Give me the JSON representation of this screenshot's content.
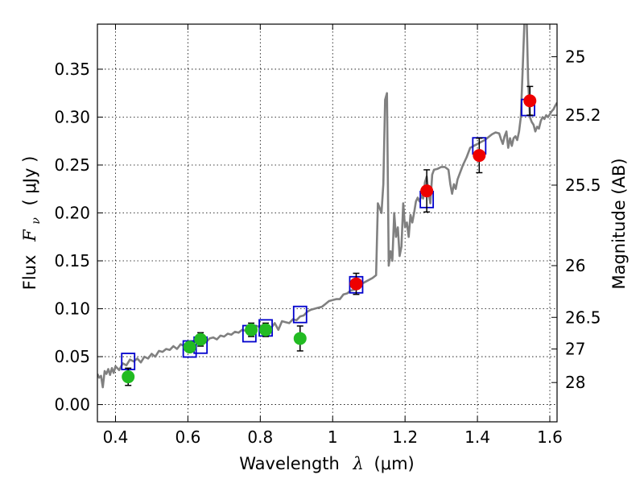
{
  "chart_data": {
    "type": "scatter",
    "xlabel_text": "Wavelength",
    "xlabel_symbol": "λ",
    "xlabel_unit": "(μm)",
    "ylabel_text": "Flux",
    "ylabel_symbol": "F",
    "ylabel_symbol_sub": "ν",
    "ylabel_unit": "( μJy )",
    "y2label": "Magnitude (AB)",
    "xlim": [
      0.35,
      1.62
    ],
    "ylim": [
      -0.018,
      0.397
    ],
    "grid": true,
    "x_ticks": [
      0.4,
      0.6,
      0.8,
      1.0,
      1.2,
      1.4,
      1.6
    ],
    "x_tick_labels": [
      "0.4",
      "0.6",
      "0.8",
      "1",
      "1.2",
      "1.4",
      "1.6"
    ],
    "y_ticks": [
      0.0,
      0.05,
      0.1,
      0.15,
      0.2,
      0.25,
      0.3,
      0.35
    ],
    "y_tick_labels": [
      "0.00",
      "0.05",
      "0.10",
      "0.15",
      "0.20",
      "0.25",
      "0.30",
      "0.35"
    ],
    "mag_ticks": [
      {
        "label": "25",
        "flux": 0.363
      },
      {
        "label": "25.2",
        "flux": 0.302
      },
      {
        "label": "25.5",
        "flux": 0.229
      },
      {
        "label": "26",
        "flux": 0.145
      },
      {
        "label": "26.5",
        "flux": 0.091
      },
      {
        "label": "27",
        "flux": 0.058
      },
      {
        "label": "28",
        "flux": 0.023
      }
    ],
    "colors": {
      "sed": "#808080",
      "model_box": "#0000cc",
      "ground": "#22bb22",
      "space": "#ee0000",
      "errorbar": "#000000"
    },
    "series": [
      {
        "type": "line",
        "points": [
          [
            0.35,
            0.032
          ],
          [
            0.355,
            0.028
          ],
          [
            0.36,
            0.03
          ],
          [
            0.365,
            0.018
          ],
          [
            0.37,
            0.035
          ],
          [
            0.375,
            0.032
          ],
          [
            0.38,
            0.037
          ],
          [
            0.385,
            0.031
          ],
          [
            0.39,
            0.038
          ],
          [
            0.395,
            0.033
          ],
          [
            0.4,
            0.04
          ],
          [
            0.41,
            0.036
          ],
          [
            0.42,
            0.043
          ],
          [
            0.43,
            0.041
          ],
          [
            0.44,
            0.047
          ],
          [
            0.45,
            0.045
          ],
          [
            0.46,
            0.048
          ],
          [
            0.47,
            0.044
          ],
          [
            0.48,
            0.05
          ],
          [
            0.49,
            0.048
          ],
          [
            0.5,
            0.053
          ],
          [
            0.51,
            0.05
          ],
          [
            0.52,
            0.056
          ],
          [
            0.53,
            0.055
          ],
          [
            0.54,
            0.058
          ],
          [
            0.55,
            0.057
          ],
          [
            0.56,
            0.061
          ],
          [
            0.57,
            0.058
          ],
          [
            0.58,
            0.063
          ],
          [
            0.59,
            0.061
          ],
          [
            0.6,
            0.064
          ],
          [
            0.61,
            0.062
          ],
          [
            0.62,
            0.066
          ],
          [
            0.63,
            0.064
          ],
          [
            0.64,
            0.067
          ],
          [
            0.65,
            0.065
          ],
          [
            0.66,
            0.069
          ],
          [
            0.67,
            0.07
          ],
          [
            0.68,
            0.068
          ],
          [
            0.69,
            0.072
          ],
          [
            0.7,
            0.071
          ],
          [
            0.71,
            0.074
          ],
          [
            0.72,
            0.073
          ],
          [
            0.73,
            0.076
          ],
          [
            0.74,
            0.075
          ],
          [
            0.75,
            0.078
          ],
          [
            0.76,
            0.077
          ],
          [
            0.77,
            0.08
          ],
          [
            0.78,
            0.079
          ],
          [
            0.79,
            0.082
          ],
          [
            0.8,
            0.081
          ],
          [
            0.81,
            0.084
          ],
          [
            0.82,
            0.083
          ],
          [
            0.83,
            0.08
          ],
          [
            0.84,
            0.085
          ],
          [
            0.85,
            0.078
          ],
          [
            0.86,
            0.087
          ],
          [
            0.87,
            0.086
          ],
          [
            0.88,
            0.085
          ],
          [
            0.89,
            0.089
          ],
          [
            0.9,
            0.088
          ],
          [
            0.91,
            0.092
          ],
          [
            0.92,
            0.093
          ],
          [
            0.93,
            0.097
          ],
          [
            0.94,
            0.099
          ],
          [
            0.95,
            0.1
          ],
          [
            0.96,
            0.101
          ],
          [
            0.97,
            0.102
          ],
          [
            0.98,
            0.105
          ],
          [
            0.99,
            0.108
          ],
          [
            1.0,
            0.109
          ],
          [
            1.01,
            0.11
          ],
          [
            1.02,
            0.11
          ],
          [
            1.03,
            0.115
          ],
          [
            1.04,
            0.116
          ],
          [
            1.05,
            0.119
          ],
          [
            1.06,
            0.12
          ],
          [
            1.07,
            0.124
          ],
          [
            1.08,
            0.126
          ],
          [
            1.09,
            0.128
          ],
          [
            1.1,
            0.13
          ],
          [
            1.11,
            0.132
          ],
          [
            1.12,
            0.135
          ],
          [
            1.125,
            0.21
          ],
          [
            1.13,
            0.205
          ],
          [
            1.135,
            0.2
          ],
          [
            1.14,
            0.23
          ],
          [
            1.145,
            0.318
          ],
          [
            1.15,
            0.325
          ],
          [
            1.155,
            0.145
          ],
          [
            1.16,
            0.16
          ],
          [
            1.165,
            0.15
          ],
          [
            1.17,
            0.2
          ],
          [
            1.175,
            0.175
          ],
          [
            1.18,
            0.185
          ],
          [
            1.185,
            0.155
          ],
          [
            1.19,
            0.165
          ],
          [
            1.195,
            0.21
          ],
          [
            1.2,
            0.185
          ],
          [
            1.205,
            0.19
          ],
          [
            1.21,
            0.175
          ],
          [
            1.215,
            0.198
          ],
          [
            1.22,
            0.19
          ],
          [
            1.225,
            0.2
          ],
          [
            1.23,
            0.212
          ],
          [
            1.235,
            0.216
          ],
          [
            1.24,
            0.212
          ],
          [
            1.245,
            0.218
          ],
          [
            1.25,
            0.215
          ],
          [
            1.255,
            0.232
          ],
          [
            1.26,
            0.238
          ],
          [
            1.265,
            0.22
          ],
          [
            1.27,
            0.21
          ],
          [
            1.275,
            0.24
          ],
          [
            1.28,
            0.245
          ],
          [
            1.29,
            0.246
          ],
          [
            1.3,
            0.248
          ],
          [
            1.31,
            0.248
          ],
          [
            1.32,
            0.245
          ],
          [
            1.325,
            0.23
          ],
          [
            1.33,
            0.22
          ],
          [
            1.335,
            0.23
          ],
          [
            1.34,
            0.225
          ],
          [
            1.345,
            0.235
          ],
          [
            1.35,
            0.24
          ],
          [
            1.36,
            0.25
          ],
          [
            1.37,
            0.258
          ],
          [
            1.38,
            0.268
          ],
          [
            1.39,
            0.27
          ],
          [
            1.4,
            0.272
          ],
          [
            1.41,
            0.274
          ],
          [
            1.42,
            0.276
          ],
          [
            1.43,
            0.279
          ],
          [
            1.44,
            0.282
          ],
          [
            1.45,
            0.284
          ],
          [
            1.46,
            0.283
          ],
          [
            1.465,
            0.277
          ],
          [
            1.47,
            0.272
          ],
          [
            1.475,
            0.28
          ],
          [
            1.48,
            0.285
          ],
          [
            1.485,
            0.268
          ],
          [
            1.49,
            0.278
          ],
          [
            1.495,
            0.27
          ],
          [
            1.5,
            0.278
          ],
          [
            1.505,
            0.28
          ],
          [
            1.51,
            0.276
          ],
          [
            1.515,
            0.285
          ],
          [
            1.52,
            0.3
          ],
          [
            1.525,
            0.35
          ],
          [
            1.53,
            0.4
          ],
          [
            1.535,
            0.42
          ],
          [
            1.54,
            0.34
          ],
          [
            1.545,
            0.3
          ],
          [
            1.55,
            0.295
          ],
          [
            1.555,
            0.292
          ],
          [
            1.56,
            0.285
          ],
          [
            1.565,
            0.29
          ],
          [
            1.57,
            0.288
          ],
          [
            1.575,
            0.296
          ],
          [
            1.58,
            0.3
          ],
          [
            1.585,
            0.298
          ],
          [
            1.59,
            0.302
          ],
          [
            1.595,
            0.3
          ],
          [
            1.6,
            0.303
          ],
          [
            1.605,
            0.306
          ],
          [
            1.61,
            0.308
          ],
          [
            1.615,
            0.312
          ],
          [
            1.62,
            0.315
          ]
        ]
      },
      {
        "type": "model_boxes",
        "points": [
          [
            0.435,
            0.045
          ],
          [
            0.605,
            0.058
          ],
          [
            0.635,
            0.062
          ],
          [
            0.77,
            0.074
          ],
          [
            0.815,
            0.08
          ],
          [
            0.91,
            0.094
          ],
          [
            1.065,
            0.125
          ],
          [
            1.26,
            0.214
          ],
          [
            1.405,
            0.27
          ],
          [
            1.54,
            0.31
          ]
        ]
      },
      {
        "type": "photometry",
        "color_key": "ground",
        "points": [
          {
            "x": 0.435,
            "y": 0.029,
            "err": 0.009
          },
          {
            "x": 0.605,
            "y": 0.06,
            "err": 0.005
          },
          {
            "x": 0.635,
            "y": 0.068,
            "err": 0.007
          },
          {
            "x": 0.775,
            "y": 0.078,
            "err": 0.007
          },
          {
            "x": 0.815,
            "y": 0.078,
            "err": 0.007
          },
          {
            "x": 0.91,
            "y": 0.069,
            "err": 0.013
          }
        ]
      },
      {
        "type": "photometry",
        "color_key": "space",
        "points": [
          {
            "x": 1.065,
            "y": 0.126,
            "err": 0.011
          },
          {
            "x": 1.26,
            "y": 0.223,
            "err": 0.022
          },
          {
            "x": 1.405,
            "y": 0.26,
            "err": 0.018
          },
          {
            "x": 1.545,
            "y": 0.317,
            "err": 0.015
          }
        ]
      }
    ]
  }
}
